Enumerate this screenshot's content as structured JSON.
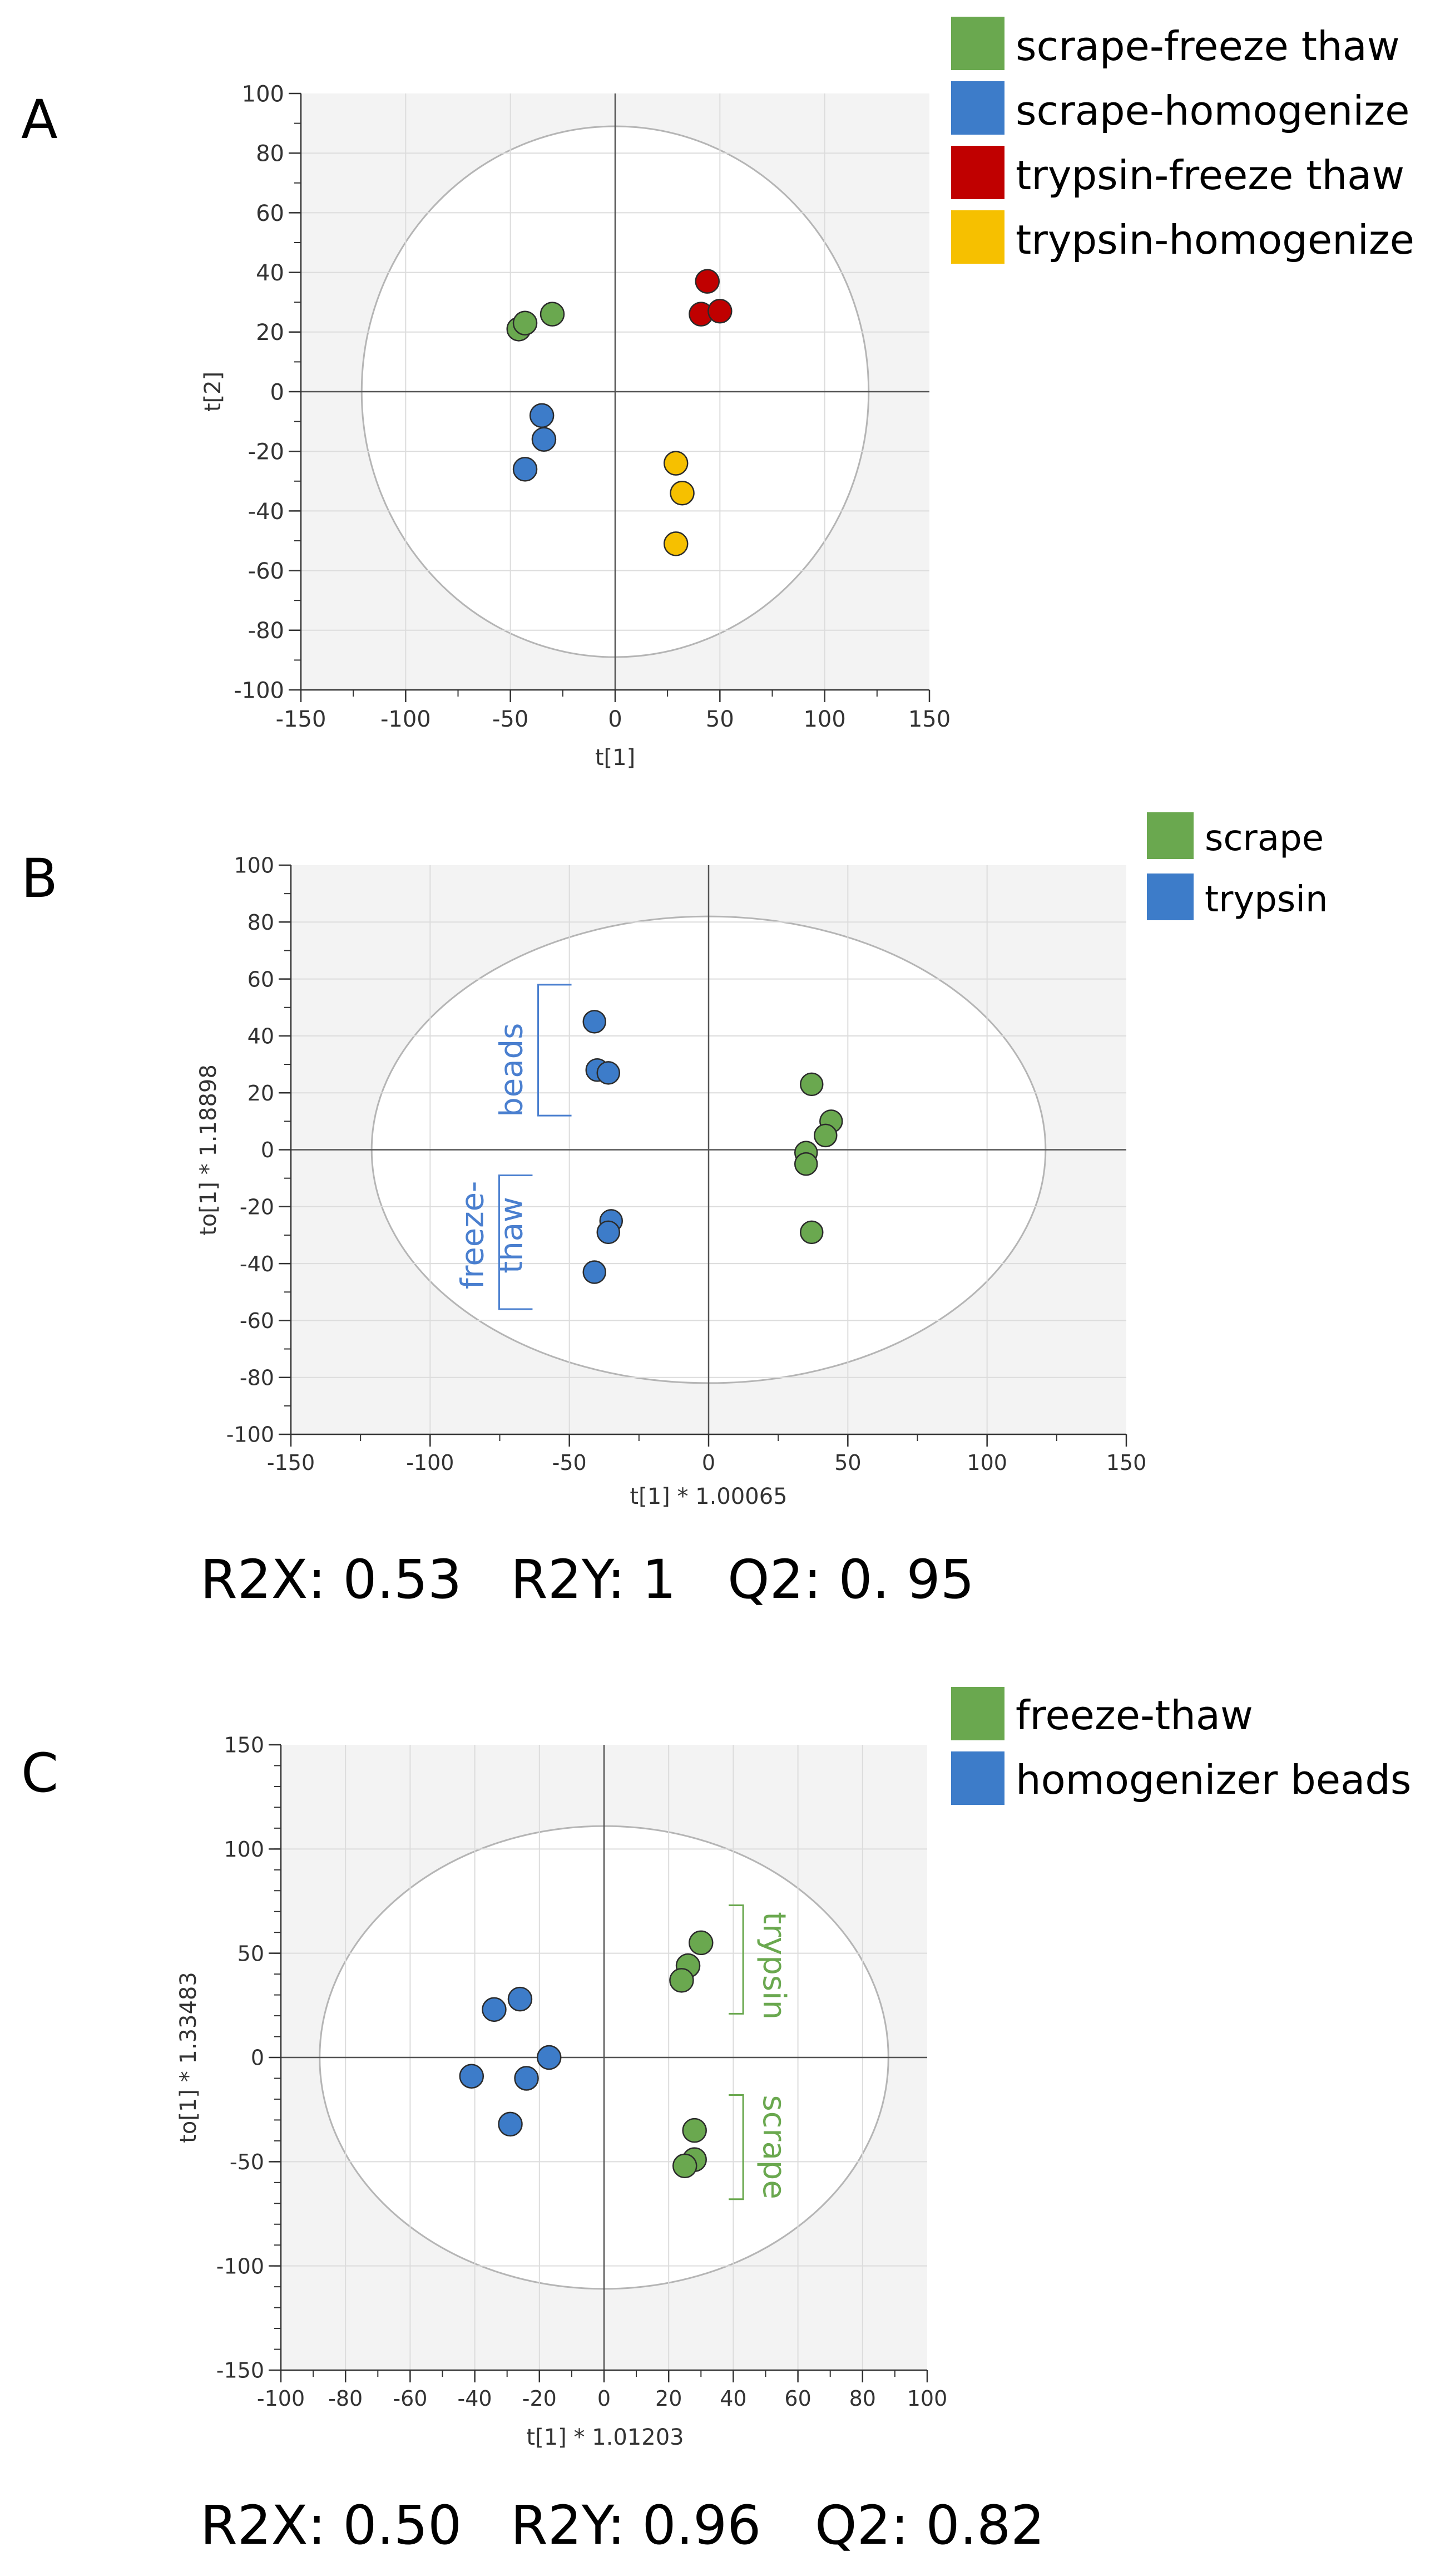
{
  "chart_data": [
    {
      "id": "A",
      "type": "scatter",
      "panel_label": "A",
      "xlabel": "t[1]",
      "ylabel": "t[2]",
      "xlim": [
        -150,
        150
      ],
      "ylim": [
        -100,
        100
      ],
      "xticks": [
        -150,
        -100,
        -50,
        0,
        50,
        100,
        150
      ],
      "yticks": [
        -100,
        -80,
        -60,
        -40,
        -20,
        0,
        20,
        40,
        60,
        80,
        100
      ],
      "minor_x": 25,
      "minor_y": 10,
      "ellipse": {
        "rx": 121,
        "ry": 89
      },
      "legend": [
        {
          "label": "scrape-freeze thaw",
          "color": "#6aa84f"
        },
        {
          "label": "scrape-homogenize",
          "color": "#3d7cc9"
        },
        {
          "label": "trypsin-freeze thaw",
          "color": "#c00000"
        },
        {
          "label": "trypsin-homogenize",
          "color": "#f6c000"
        }
      ],
      "series": [
        {
          "name": "scrape-freeze thaw",
          "color": "#6aa84f",
          "points": [
            [
              -46,
              21
            ],
            [
              -43,
              23
            ],
            [
              -30,
              26
            ]
          ]
        },
        {
          "name": "scrape-homogenize",
          "color": "#3d7cc9",
          "points": [
            [
              -35,
              -8
            ],
            [
              -34,
              -16
            ],
            [
              -43,
              -26
            ]
          ]
        },
        {
          "name": "trypsin-freeze thaw",
          "color": "#c00000",
          "points": [
            [
              44,
              37
            ],
            [
              41,
              26
            ],
            [
              50,
              27
            ]
          ]
        },
        {
          "name": "trypsin-homogenize",
          "color": "#f6c000",
          "points": [
            [
              29,
              -24
            ],
            [
              32,
              -34
            ],
            [
              29,
              -51
            ]
          ]
        }
      ]
    },
    {
      "id": "B",
      "type": "scatter",
      "panel_label": "B",
      "xlabel": "t[1] * 1.00065",
      "ylabel": "to[1] * 1.18898",
      "xlim": [
        -150,
        150
      ],
      "ylim": [
        -100,
        100
      ],
      "xticks": [
        -150,
        -100,
        -50,
        0,
        50,
        100,
        150
      ],
      "yticks": [
        -100,
        -80,
        -60,
        -40,
        -20,
        0,
        20,
        40,
        60,
        80,
        100
      ],
      "minor_x": 25,
      "minor_y": 10,
      "ellipse": {
        "rx": 121,
        "ry": 82
      },
      "legend": [
        {
          "label": "scrape",
          "color": "#6aa84f"
        },
        {
          "label": "trypsin",
          "color": "#3d7cc9"
        }
      ],
      "series": [
        {
          "name": "scrape",
          "color": "#6aa84f",
          "points": [
            [
              37,
              23
            ],
            [
              44,
              10
            ],
            [
              42,
              5
            ],
            [
              35,
              -1
            ],
            [
              35,
              -5
            ],
            [
              37,
              -29
            ]
          ]
        },
        {
          "name": "trypsin",
          "color": "#3d7cc9",
          "points": [
            [
              -41,
              45
            ],
            [
              -40,
              28
            ],
            [
              -36,
              27
            ],
            [
              -35,
              -25
            ],
            [
              -36,
              -29
            ],
            [
              -41,
              -43
            ]
          ]
        }
      ],
      "annotations": [
        {
          "text": "beads",
          "color": "#4a7fcf",
          "x": -70,
          "y": 28,
          "y0": 12,
          "y1": 58
        },
        {
          "text": "freeze-",
          "color": "#4a7fcf",
          "x": -84,
          "y": -30,
          "y0": -56,
          "y1": -9
        },
        {
          "text": "thaw",
          "color": "#4a7fcf",
          "x": -70,
          "y": -30,
          "y0": -56,
          "y1": -9
        }
      ],
      "stats": {
        "r2x": "R2X: 0.53",
        "r2y": "R2Y: 1",
        "q2": "Q2: 0. 95"
      }
    },
    {
      "id": "C",
      "type": "scatter",
      "panel_label": "C",
      "xlabel": "t[1] * 1.01203",
      "ylabel": "to[1] * 1.33483",
      "xlim": [
        -100,
        100
      ],
      "ylim": [
        -150,
        150
      ],
      "xticks": [
        -100,
        -80,
        -60,
        -40,
        -20,
        0,
        20,
        40,
        60,
        80,
        100
      ],
      "yticks": [
        -150,
        -100,
        -50,
        0,
        50,
        100,
        150
      ],
      "minor_x": 10,
      "minor_y": 10,
      "ellipse": {
        "rx": 88,
        "ry": 111
      },
      "legend": [
        {
          "label": "freeze-thaw",
          "color": "#6aa84f"
        },
        {
          "label": "homogenizer beads",
          "color": "#3d7cc9"
        }
      ],
      "series": [
        {
          "name": "freeze-thaw",
          "color": "#6aa84f",
          "points": [
            [
              30,
              55
            ],
            [
              26,
              44
            ],
            [
              24,
              37
            ],
            [
              28,
              -35
            ],
            [
              28,
              -49
            ],
            [
              25,
              -52
            ]
          ]
        },
        {
          "name": "homogenizer beads",
          "color": "#3d7cc9",
          "points": [
            [
              -26,
              28
            ],
            [
              -34,
              23
            ],
            [
              -17,
              0
            ],
            [
              -41,
              -9
            ],
            [
              -24,
              -10
            ],
            [
              -29,
              -32
            ]
          ]
        }
      ],
      "annotations": [
        {
          "text": "trypsin",
          "color": "#6aa84f",
          "x": 52,
          "y": 44,
          "y0": 21,
          "y1": 73
        },
        {
          "text": "scrape",
          "color": "#6aa84f",
          "x": 52,
          "y": -43,
          "y0": -68,
          "y1": -18
        }
      ],
      "stats": {
        "r2x": "R2X: 0.50",
        "r2y": "R2Y: 0.96",
        "q2": "Q2: 0.82"
      }
    }
  ]
}
